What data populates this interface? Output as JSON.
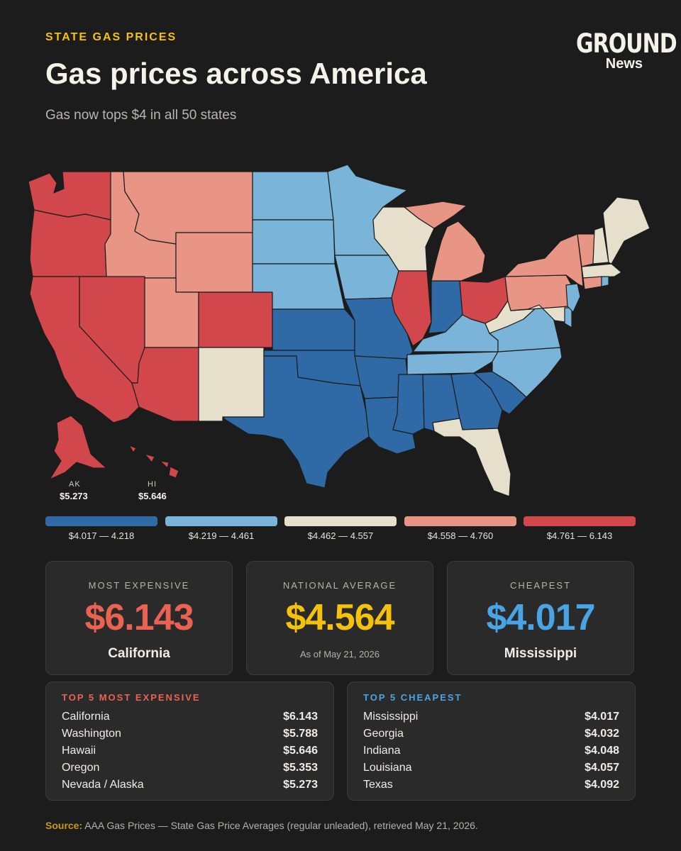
{
  "header": {
    "eyebrow": "STATE GAS PRICES",
    "title": "Gas prices across America",
    "subtitle": "Gas now tops $4 in all 50 states"
  },
  "logo": {
    "top": "GROUND",
    "bottom": "News"
  },
  "colors": {
    "bin1": "#2f6aa6",
    "bin2": "#7ab4d8",
    "bin3": "#e6dfcc",
    "bin4": "#e99585",
    "bin5": "#d2474b",
    "accent": "#f4c20d",
    "expensive": "#ea6352",
    "cheap": "#4aa3e4"
  },
  "map": {
    "insets": {
      "ak": {
        "label": "AK",
        "value": "$5.273"
      },
      "hi": {
        "label": "HI",
        "value": "$5.646"
      }
    }
  },
  "legend": [
    {
      "label": "$4.017 — 4.218",
      "color": "#2f6aa6"
    },
    {
      "label": "$4.219 — 4.461",
      "color": "#7ab4d8"
    },
    {
      "label": "$4.462 — 4.557",
      "color": "#e6dfcc"
    },
    {
      "label": "$4.558 — 4.760",
      "color": "#e99585"
    },
    {
      "label": "$4.761 — 6.143",
      "color": "#d2474b"
    }
  ],
  "stats": {
    "most_expensive": {
      "label": "MOST EXPENSIVE",
      "value": "$6.143",
      "state": "California"
    },
    "national_average": {
      "label": "NATIONAL AVERAGE",
      "value": "$4.564",
      "note": "As of May 21, 2026"
    },
    "cheapest": {
      "label": "CHEAPEST",
      "value": "$4.017",
      "state": "Mississippi"
    }
  },
  "top_expensive": {
    "title": "TOP 5 MOST EXPENSIVE",
    "rows": [
      {
        "state": "California",
        "price": "$6.143"
      },
      {
        "state": "Washington",
        "price": "$5.788"
      },
      {
        "state": "Hawaii",
        "price": "$5.646"
      },
      {
        "state": "Oregon",
        "price": "$5.353"
      },
      {
        "state": "Nevada / Alaska",
        "price": "$5.273"
      }
    ]
  },
  "top_cheapest": {
    "title": "TOP 5 CHEAPEST",
    "rows": [
      {
        "state": "Mississippi",
        "price": "$4.017"
      },
      {
        "state": "Georgia",
        "price": "$4.032"
      },
      {
        "state": "Indiana",
        "price": "$4.048"
      },
      {
        "state": "Louisiana",
        "price": "$4.057"
      },
      {
        "state": "Texas",
        "price": "$4.092"
      }
    ]
  },
  "source": {
    "label": "Source:",
    "text": " AAA Gas Prices — State Gas Price Averages (regular unleaded), retrieved May 21, 2026."
  }
}
